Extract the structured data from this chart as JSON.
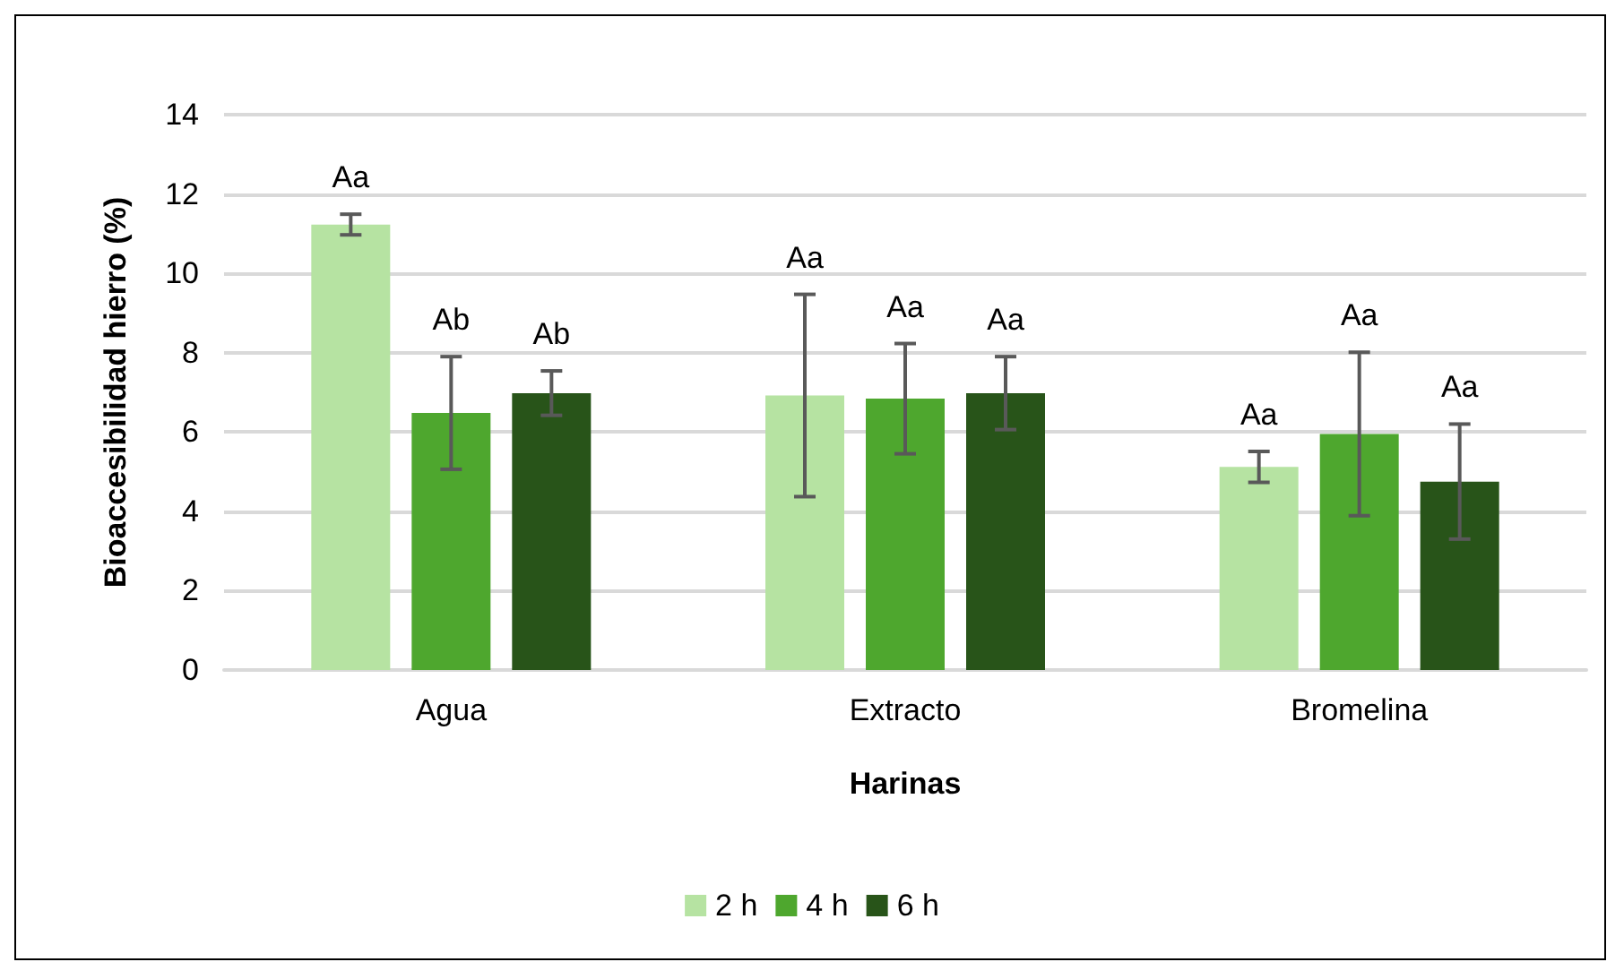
{
  "chart_data": {
    "type": "bar",
    "xlabel": "Harinas",
    "ylabel": "Bioaccesibilidad hierro (%)",
    "categories": [
      "Agua",
      "Extracto",
      "Bromelina"
    ],
    "series": [
      {
        "name": "2 h",
        "color": "#b6e3a2",
        "values": [
          11.23,
          6.92,
          5.12
        ],
        "errors": [
          0.26,
          2.55,
          0.39
        ]
      },
      {
        "name": "4 h",
        "color": "#4ea72e",
        "values": [
          6.48,
          6.84,
          5.95
        ],
        "errors": [
          1.42,
          1.39,
          2.06
        ]
      },
      {
        "name": "6 h",
        "color": "#285419",
        "values": [
          6.98,
          6.98,
          4.75
        ],
        "errors": [
          0.56,
          0.92,
          1.45
        ]
      }
    ],
    "ylim": [
      0,
      14
    ],
    "yticks": [
      0,
      2,
      4,
      6,
      8,
      10,
      12,
      14
    ],
    "grid": "y",
    "legend": "bottom",
    "annotations": [
      "Aa",
      "Ab",
      "Ab",
      "Aa",
      "Aa",
      "Aa",
      "Aa",
      "Aa",
      "Aa"
    ]
  }
}
